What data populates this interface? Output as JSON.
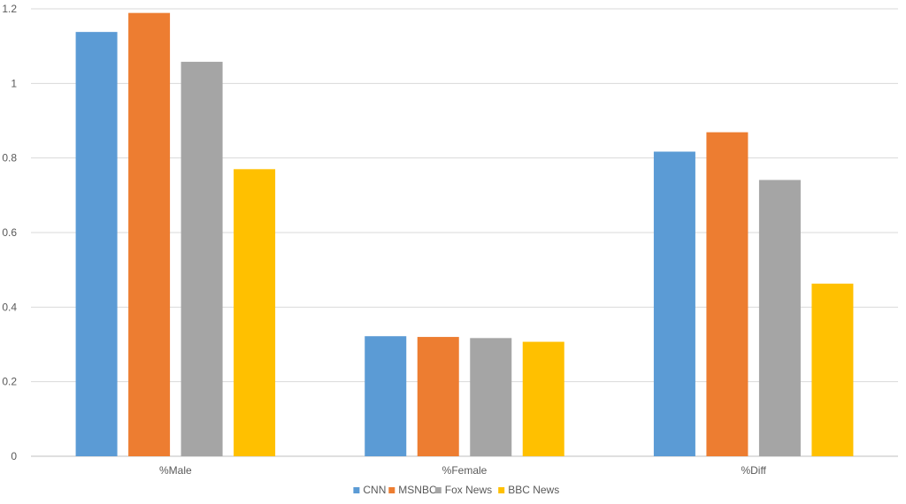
{
  "chart_data": {
    "type": "bar",
    "title": "",
    "xlabel": "",
    "ylabel": "",
    "categories": [
      "%Male",
      "%Female",
      "%Diff"
    ],
    "series": [
      {
        "name": "CNN",
        "color": "#5b9bd5",
        "values": [
          1.138,
          0.322,
          0.817
        ]
      },
      {
        "name": "MSNBC",
        "color": "#ed7d31",
        "values": [
          1.189,
          0.32,
          0.869
        ]
      },
      {
        "name": "Fox News",
        "color": "#a5a5a5",
        "values": [
          1.058,
          0.317,
          0.741
        ]
      },
      {
        "name": "BBC News",
        "color": "#ffc000",
        "values": [
          0.77,
          0.307,
          0.463
        ]
      }
    ],
    "ylim": [
      0,
      1.2
    ],
    "yticks": [
      "0",
      "0.2",
      "0.4",
      "0.6",
      "0.8",
      "1",
      "1.2"
    ],
    "yticks_values": [
      0,
      0.2,
      0.4,
      0.6,
      0.8,
      1.0,
      1.2
    ],
    "grid": true,
    "legend_position": "bottom"
  }
}
